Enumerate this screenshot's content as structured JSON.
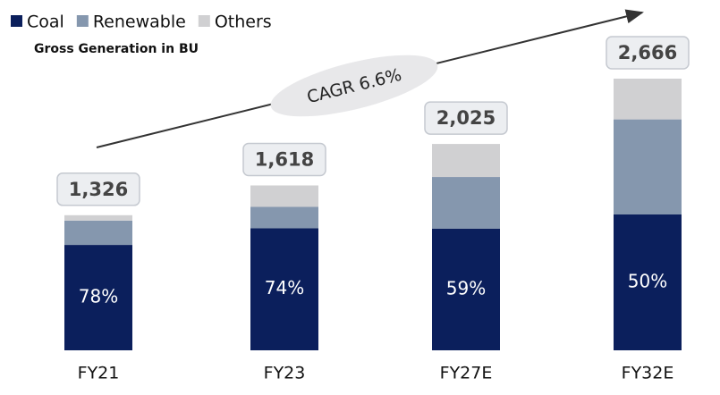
{
  "chart_data": {
    "type": "stacked_bar",
    "subtitle": "Gross Generation in BU",
    "categories": [
      "FY21",
      "FY23",
      "FY27E",
      "FY32E"
    ],
    "series": [
      {
        "name": "Coal",
        "color": "#0b1f5c",
        "values": [
          78,
          74,
          59,
          50
        ],
        "value_labels": [
          "78%",
          "74%",
          "59%",
          "50%"
        ]
      },
      {
        "name": "Renewable",
        "color": "#8597ae",
        "values": [
          18,
          13,
          25,
          35
        ]
      },
      {
        "name": "Others",
        "color": "#d0d0d2",
        "values": [
          4,
          13,
          16,
          15
        ]
      }
    ],
    "totals": {
      "values": [
        1326,
        1618,
        2025,
        2666
      ],
      "value_labels": [
        "1,326",
        "1,618",
        "2,025",
        "2,666"
      ]
    },
    "annotation": "CAGR 6.6%"
  }
}
